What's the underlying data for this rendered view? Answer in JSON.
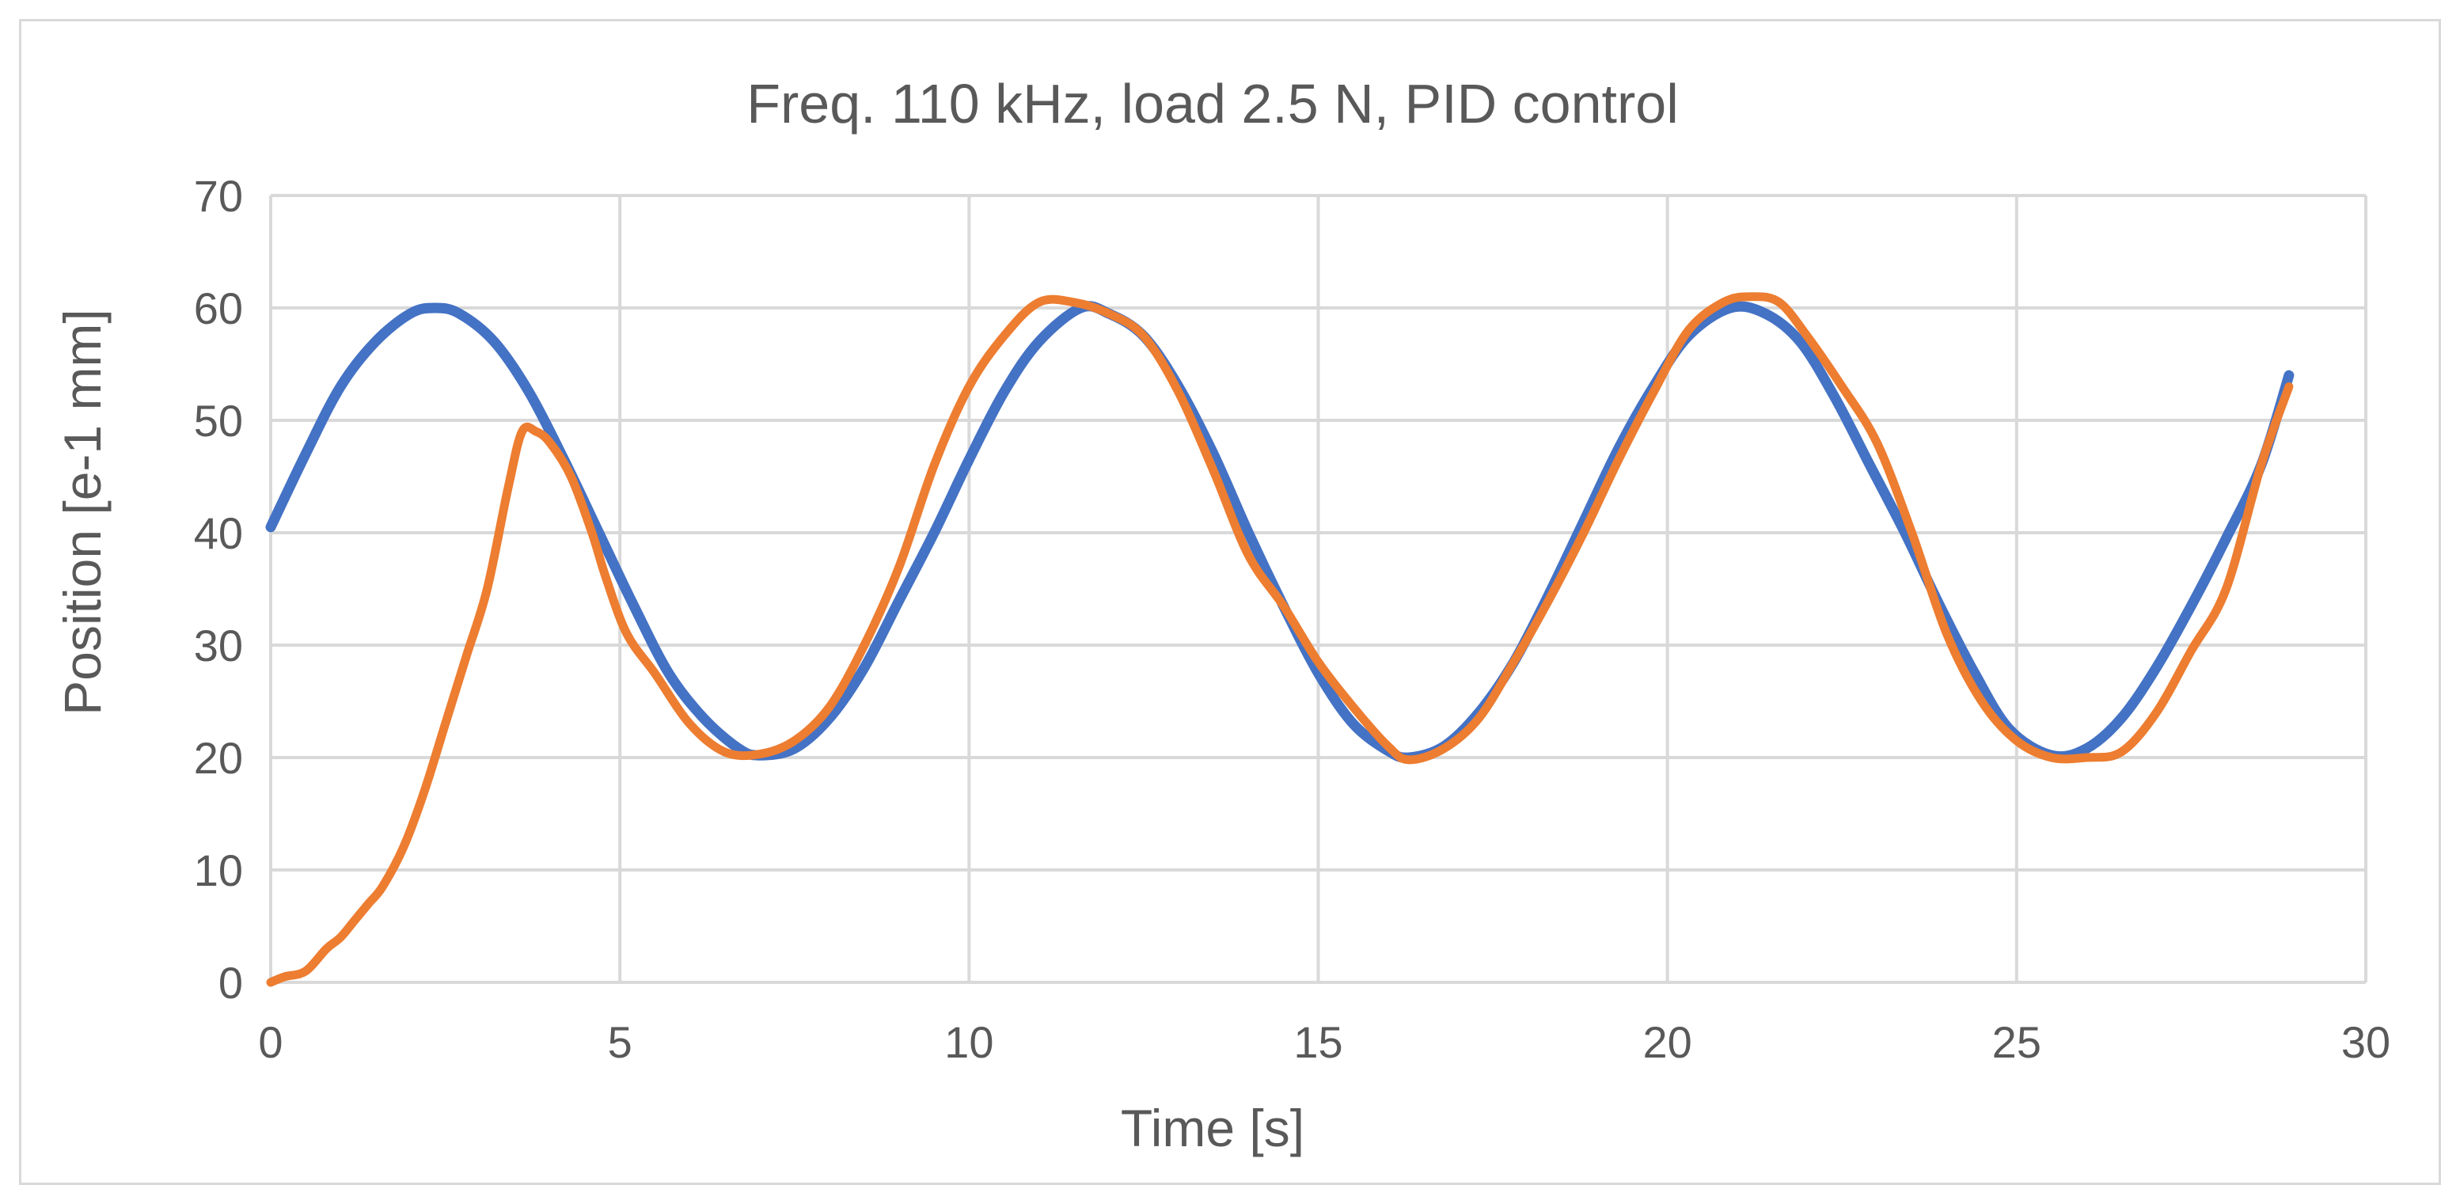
{
  "chart_data": {
    "type": "line",
    "title": "Freq. 110 kHz, load 2.5 N, PID control",
    "xlabel": "Time [s]",
    "ylabel": "Position [e-1 mm]",
    "xlim": [
      0,
      30
    ],
    "ylim": [
      0,
      70
    ],
    "xticks": [
      0,
      5,
      10,
      15,
      20,
      25,
      30
    ],
    "yticks": [
      0,
      10,
      20,
      30,
      40,
      50,
      60,
      70
    ],
    "grid": true,
    "legend": "none",
    "series": [
      {
        "color": "#4472c4",
        "x": [
          0,
          0.5,
          1.0,
          1.5,
          2.0,
          2.35,
          2.7,
          3.2,
          3.7,
          4.2,
          4.7,
          5.2,
          5.7,
          6.2,
          6.7,
          7.0,
          7.5,
          8.0,
          8.5,
          9.0,
          9.5,
          10.0,
          10.5,
          11.0,
          11.6,
          12.0,
          12.5,
          13.0,
          13.5,
          14.0,
          14.5,
          15.0,
          15.5,
          16.0,
          16.3,
          16.8,
          17.3,
          17.8,
          18.3,
          18.8,
          19.3,
          19.8,
          20.3,
          20.9,
          21.4,
          21.9,
          22.4,
          22.9,
          23.4,
          23.9,
          24.4,
          24.9,
          25.5,
          26.0,
          26.5,
          27.0,
          27.5,
          28.0,
          28.5,
          28.9
        ],
        "y": [
          40.5,
          47,
          53,
          57,
          59.5,
          60,
          59.5,
          57,
          52.5,
          46.5,
          40,
          33.5,
          27.5,
          23.5,
          20.8,
          20.2,
          20.8,
          23.5,
          28,
          34,
          40,
          46.5,
          52.5,
          57,
          60,
          59.5,
          57.5,
          53,
          47,
          40,
          33.5,
          27.5,
          23,
          20.6,
          20,
          21,
          24,
          28.5,
          34.5,
          41,
          47.5,
          53,
          57.5,
          60,
          59.5,
          57,
          52,
          46,
          40,
          33.5,
          27.5,
          22.5,
          20.2,
          20.8,
          23.5,
          28,
          33.5,
          39.5,
          46,
          54
        ]
      },
      {
        "color": "#ed7d31",
        "x": [
          0,
          0.2,
          0.5,
          0.8,
          1.0,
          1.2,
          1.4,
          1.6,
          1.9,
          2.2,
          2.5,
          2.8,
          3.1,
          3.4,
          3.6,
          3.8,
          4.0,
          4.3,
          4.6,
          4.8,
          5.1,
          5.5,
          6.0,
          6.5,
          7.0,
          7.5,
          8.0,
          8.5,
          9.0,
          9.5,
          10.0,
          10.5,
          11.0,
          11.5,
          12.0,
          12.5,
          13.0,
          13.5,
          14.0,
          14.5,
          15.0,
          15.5,
          16.0,
          16.3,
          16.8,
          17.3,
          17.8,
          18.3,
          18.8,
          19.3,
          19.8,
          20.3,
          20.8,
          21.2,
          21.6,
          22.0,
          22.5,
          23.0,
          23.5,
          24.0,
          24.5,
          25.0,
          25.5,
          26.0,
          26.5,
          27.0,
          27.5,
          28.0,
          28.5,
          28.9
        ],
        "y": [
          0,
          0.5,
          1,
          3,
          4,
          5.5,
          7,
          8.5,
          12,
          17,
          23,
          29,
          35,
          44,
          49,
          49,
          48,
          45,
          40,
          36,
          31,
          27.5,
          23,
          20.5,
          20.3,
          21.5,
          24.5,
          30,
          37,
          46,
          53,
          57.5,
          60.5,
          60.5,
          59.5,
          57.5,
          52.5,
          45.5,
          38,
          33.5,
          28.5,
          24.5,
          21,
          19.8,
          20.8,
          23.5,
          28.5,
          34,
          40,
          46.5,
          52.5,
          58,
          60.5,
          61,
          60.5,
          57.5,
          53,
          48,
          40,
          31,
          25,
          21.5,
          20,
          20,
          20.5,
          24,
          29.5,
          35,
          46,
          53
        ]
      }
    ]
  }
}
